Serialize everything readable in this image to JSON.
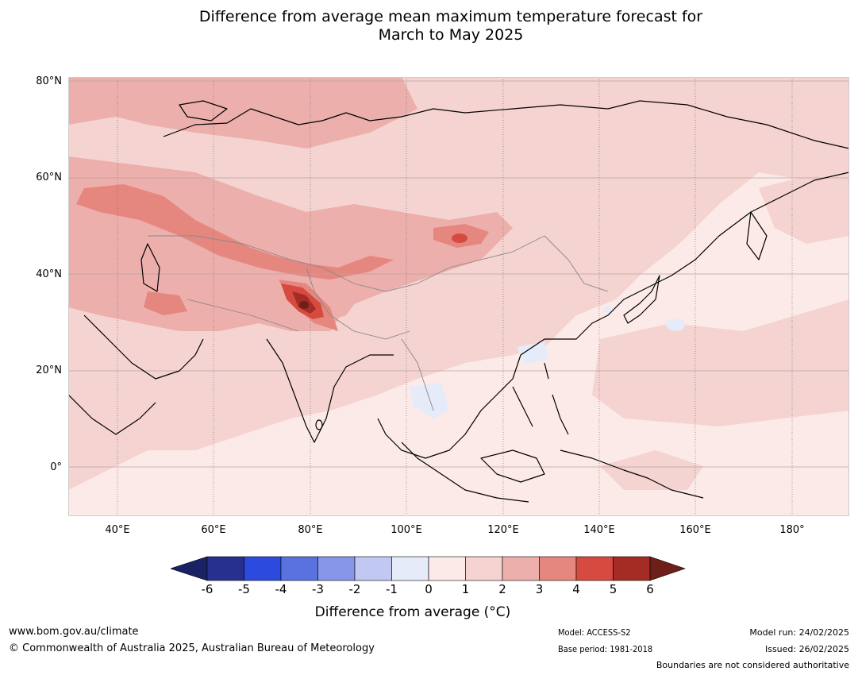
{
  "title_line1": "Difference from average mean maximum temperature forecast for",
  "title_line2": "March to May 2025",
  "map": {
    "lat_labels": [
      "80°N",
      "60°N",
      "40°N",
      "20°N",
      "0°"
    ],
    "lon_labels": [
      "40°E",
      "60°E",
      "80°E",
      "100°E",
      "120°E",
      "140°E",
      "160°E",
      "180°"
    ],
    "colors": {
      "ocean_base": "#fbeae8",
      "band_1_2": "#f4d3d0",
      "band_2_3": "#ecafab",
      "band_3_4": "#e5877f",
      "band_4_5": "#d64a3f",
      "band_5_6": "#a52c24",
      "band_over_6": "#6e1f1a",
      "band_0_neg1": "#e6ebfa",
      "band_neg1_neg2": "#c1c9f2"
    }
  },
  "colorbar": {
    "ticks": [
      "-6",
      "-5",
      "-4",
      "-3",
      "-2",
      "-1",
      "0",
      "1",
      "2",
      "3",
      "4",
      "5",
      "6"
    ],
    "colors": [
      "#27308f",
      "#2c4bde",
      "#5a72e0",
      "#8796e9",
      "#c1c9f2",
      "#e6ebfa",
      "#fbeae8",
      "#f4d3d0",
      "#ecafab",
      "#e5877f",
      "#d64a3f",
      "#a52c24"
    ],
    "under_color": "#1a2266",
    "over_color": "#6e1f1a",
    "label": "Difference from average (°C)"
  },
  "footer": {
    "website": "www.bom.gov.au/climate",
    "copyright": "© Commonwealth of Australia 2025, Australian Bureau of Meteorology",
    "model": "Model: ACCESS-S2",
    "base_period": "Base period: 1981-2018",
    "model_run": "Model run: 24/02/2025",
    "issued": "Issued: 26/02/2025",
    "disclaimer": "Boundaries are not considered authoritative"
  }
}
